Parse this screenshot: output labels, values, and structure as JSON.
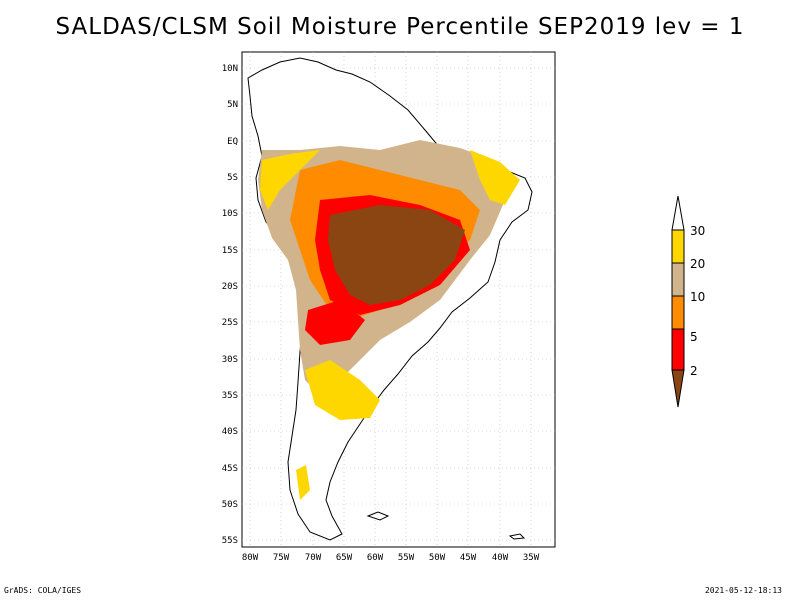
{
  "title": "SALDAS/CLSM Soil Moisture Percentile SEP2019 lev = 1",
  "footer": {
    "left": "GrADS: COLA/IGES",
    "right": "2021-05-12-18:13"
  },
  "map": {
    "region": "South America",
    "lat_ticks": [
      "10N",
      "5N",
      "EQ",
      "5S",
      "10S",
      "15S",
      "20S",
      "25S",
      "30S",
      "35S",
      "40S",
      "45S",
      "50S",
      "55S"
    ],
    "lon_ticks": [
      "80W",
      "75W",
      "70W",
      "65W",
      "60W",
      "55W",
      "50W",
      "45W",
      "40W",
      "35W"
    ],
    "grid": true
  },
  "legend": {
    "labels": [
      "30",
      "20",
      "10",
      "5",
      "2"
    ],
    "colors": {
      "above30": "#ffffff",
      "20-30": "#ffd700",
      "10-20": "#d2b48c",
      "5-10": "#ff8c00",
      "2-5": "#ff0000",
      "below2": "#8b4513"
    }
  }
}
